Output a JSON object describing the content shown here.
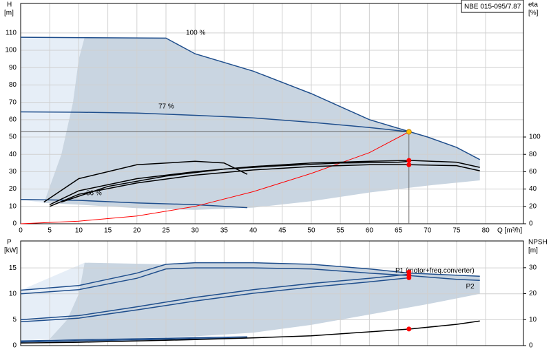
{
  "chart_data": [
    {
      "type": "line",
      "title": "NBE 015-095/7.87",
      "y_label": "H",
      "y_unit": "[m]",
      "y2_label": "eta",
      "y2_unit": "[%]",
      "x_label": "Q [m³/h]",
      "xlim": [
        0,
        86.5
      ],
      "ylim": [
        0,
        127
      ],
      "y2lim": [
        0,
        254
      ],
      "grid": true,
      "xticks": [
        0,
        5,
        10,
        15,
        20,
        25,
        30,
        35,
        40,
        45,
        50,
        55,
        60,
        65,
        70,
        75,
        80
      ],
      "yticks": [
        0,
        10,
        20,
        30,
        40,
        50,
        60,
        70,
        80,
        90,
        100,
        110
      ],
      "y2ticks": [
        0,
        20,
        40,
        60,
        80,
        100
      ],
      "areas": [
        {
          "color": "#e6eef7",
          "x": [
            0,
            11,
            10,
            9,
            7,
            4,
            0
          ],
          "values": [
            107.5,
            107.5,
            95,
            70,
            40,
            12,
            14
          ]
        },
        {
          "color": "#c9d5e1",
          "x": [
            11,
            25,
            30,
            40,
            50,
            60,
            67,
            70,
            75,
            79,
            79,
            70,
            60,
            50,
            40,
            30,
            20,
            10,
            4,
            7,
            9,
            10
          ],
          "values": [
            107.5,
            107,
            98,
            88,
            75,
            60,
            53,
            50,
            44,
            37,
            25,
            22,
            18,
            13,
            9.3,
            8,
            9,
            11,
            12,
            40,
            70,
            95
          ]
        }
      ],
      "series": [
        {
          "name": "100 %",
          "color": "#1f4e8c",
          "x": [
            0,
            25,
            30,
            40,
            50,
            60,
            67,
            70,
            75,
            79
          ],
          "values": [
            107.5,
            107,
            98,
            88,
            75,
            60,
            53,
            50,
            44,
            37
          ]
        },
        {
          "name": "77 %",
          "color": "#1f4e8c",
          "x": [
            0,
            10,
            20,
            30,
            40,
            50,
            60,
            67
          ],
          "values": [
            64.5,
            64.3,
            63.8,
            62.5,
            61,
            58.5,
            55.5,
            53
          ]
        },
        {
          "name": "36 %",
          "color": "#1f4e8c",
          "x": [
            0,
            10,
            20,
            30,
            39
          ],
          "values": [
            14,
            13.5,
            12,
            11,
            9.3
          ]
        },
        {
          "color": "#ff0000",
          "x": [
            0,
            10,
            20,
            30,
            40,
            50,
            60,
            66.8
          ],
          "values": [
            0,
            1.5,
            4.5,
            10,
            18.5,
            29,
            41,
            53
          ]
        },
        {
          "color": "#000000",
          "axis": "y2",
          "x": [
            5,
            10,
            20,
            30,
            40,
            50,
            60,
            67,
            75,
            79
          ],
          "values": [
            22,
            38,
            52,
            60,
            66,
            70,
            72,
            73,
            71,
            65
          ]
        },
        {
          "color": "#000000",
          "axis": "y2",
          "x": [
            5,
            10,
            20,
            30,
            40,
            50,
            60,
            67,
            75,
            79
          ],
          "values": [
            20,
            34,
            47,
            56,
            62,
            66,
            68,
            68,
            67,
            61
          ]
        },
        {
          "color": "#000000",
          "axis": "y2",
          "x": [
            4,
            10,
            20,
            30,
            35,
            39
          ],
          "values": [
            25,
            52,
            68,
            72,
            70,
            57
          ]
        },
        {
          "color": "#000000",
          "axis": "y2",
          "x": [
            7,
            15,
            25,
            35,
            45,
            55,
            65,
            67
          ],
          "values": [
            25,
            43,
            55,
            63,
            67,
            70,
            71,
            72
          ]
        }
      ],
      "points": [
        {
          "x": 66.8,
          "y": 53,
          "color": "#ffc000"
        },
        {
          "x": 66.8,
          "y": 73,
          "color": "#ff0000",
          "axis": "y2"
        },
        {
          "x": 66.8,
          "y": 68,
          "color": "#ff0000",
          "axis": "y2"
        }
      ]
    },
    {
      "type": "line",
      "y_label": "P",
      "y_unit": "[kW]",
      "y2_label": "NPSH",
      "y2_unit": "[m]",
      "xlim": [
        0,
        86.5
      ],
      "ylim": [
        0,
        20.2
      ],
      "y2lim": [
        0,
        40.3
      ],
      "grid": true,
      "yticks": [
        0,
        5,
        10,
        15
      ],
      "y2ticks": [
        0,
        10,
        20,
        30
      ],
      "areas": [
        {
          "color": "#e6eef7",
          "x": [
            0,
            11,
            10,
            8,
            5,
            0
          ],
          "values": [
            10.7,
            16,
            10,
            5,
            1.3,
            0.9
          ]
        },
        {
          "color": "#c9d5e1",
          "x": [
            11,
            25,
            30,
            40,
            50,
            60,
            67,
            75,
            79,
            79,
            70,
            60,
            50,
            40,
            30,
            20,
            10,
            5,
            8,
            10
          ],
          "values": [
            16,
            15.7,
            16,
            16,
            15.7,
            14.8,
            14,
            13.6,
            13.4,
            10,
            8,
            6,
            4,
            2.5,
            1.8,
            1.4,
            1.1,
            1.3,
            5,
            10
          ]
        }
      ],
      "series": [
        {
          "name": "P1 (motor+freq.converter)",
          "color": "#1f4e8c",
          "x": [
            0,
            10,
            20,
            25,
            30,
            40,
            50,
            60,
            67,
            75,
            79
          ],
          "values": [
            10.7,
            11.6,
            14,
            15.7,
            16,
            16,
            15.7,
            14.8,
            14,
            13.6,
            13.4
          ]
        },
        {
          "name": "P2",
          "color": "#1f4e8c",
          "x": [
            0,
            10,
            20,
            25,
            30,
            40,
            50,
            60,
            67,
            75,
            79
          ],
          "values": [
            10,
            10.8,
            13,
            14.8,
            15,
            15,
            14.8,
            14,
            13.5,
            12.8,
            12.6
          ]
        },
        {
          "color": "#1f4e8c",
          "x": [
            0,
            10,
            20,
            30,
            40,
            50,
            60,
            67
          ],
          "values": [
            5,
            5.8,
            7.5,
            9.3,
            10.8,
            12,
            13,
            13.8
          ]
        },
        {
          "color": "#1f4e8c",
          "x": [
            0,
            10,
            20,
            30,
            40,
            50,
            60,
            67
          ],
          "values": [
            4.6,
            5.3,
            6.9,
            8.6,
            10.1,
            11.3,
            12.3,
            13.1
          ]
        },
        {
          "color": "#1f4e8c",
          "x": [
            0,
            39
          ],
          "values": [
            0.9,
            1.7
          ]
        },
        {
          "color": "#1f4e8c",
          "x": [
            0,
            39
          ],
          "values": [
            0.7,
            1.5
          ]
        },
        {
          "color": "#000000",
          "axis": "y2",
          "x": [
            0,
            10,
            20,
            30,
            40,
            50,
            60,
            67,
            75,
            79
          ],
          "values": [
            1,
            1.3,
            1.8,
            2.3,
            3,
            3.8,
            5.3,
            6.4,
            8.2,
            9.5
          ]
        }
      ],
      "points": [
        {
          "x": 66.8,
          "y": 14.2,
          "color": "#ff0000"
        },
        {
          "x": 66.8,
          "y": 13.6,
          "color": "#ff0000"
        },
        {
          "x": 66.8,
          "y": 13.1,
          "color": "#ff0000"
        },
        {
          "x": 66.8,
          "y": 6.4,
          "color": "#ff0000",
          "axis": "y2"
        }
      ]
    }
  ]
}
